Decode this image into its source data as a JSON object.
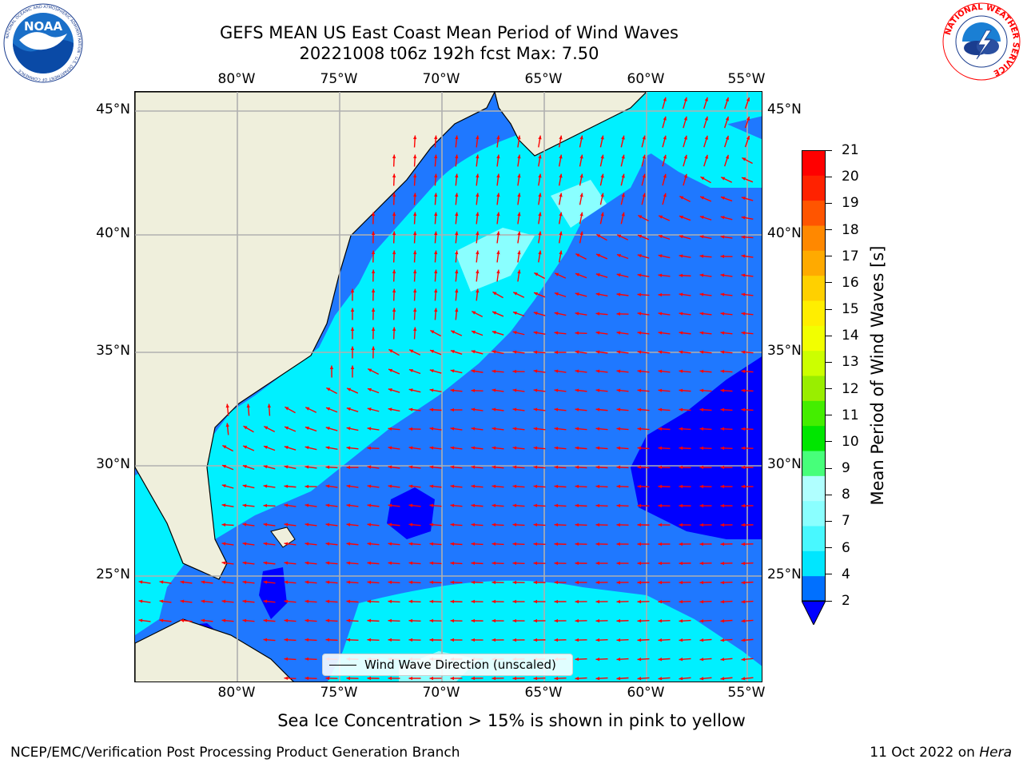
{
  "header": {
    "title_line_1": "GEFS MEAN US East Coast Mean Period of Wind Waves",
    "title_line_2": "20221008 t06z 192h fcst   Max: 7.50"
  },
  "logos": {
    "left": {
      "name": "noaa-logo",
      "text": "NOAA",
      "ring_text": "NATIONAL OCEANIC AND ATMOSPHERIC ADMINISTRATION · U.S. DEPARTMENT OF COMMERCE"
    },
    "right": {
      "name": "nws-logo",
      "ring_text": "NATIONAL WEATHER SERVICE"
    }
  },
  "map": {
    "lon_labels": [
      "80°W",
      "75°W",
      "70°W",
      "65°W",
      "60°W",
      "55°W"
    ],
    "lat_labels": [
      "45°N",
      "40°N",
      "35°N",
      "30°N",
      "25°N"
    ],
    "extent": {
      "lon_min": -85.0,
      "lon_max": -54.2,
      "lat_min": 20.5,
      "lat_max": 45.8
    },
    "grid": true,
    "land_color": "#efefdc",
    "arrow_color": "#ff0000",
    "legend_label": "Wind Wave Direction (unscaled)"
  },
  "colorbar": {
    "label": "Mean Period of Wind Waves [s]",
    "tick_labels": [
      "2",
      "4",
      "6",
      "7",
      "8",
      "9",
      "10",
      "11",
      "12",
      "13",
      "14",
      "15",
      "16",
      "17",
      "18",
      "19",
      "20",
      "21"
    ],
    "colors": [
      "#0070ff",
      "#00e6ff",
      "#48f8ff",
      "#8affff",
      "#b0ffff",
      "#47ff7a",
      "#00e600",
      "#44ee00",
      "#99ee00",
      "#ccff00",
      "#f2ff00",
      "#ffee00",
      "#ffd000",
      "#ffaa00",
      "#ff8800",
      "#ff5500",
      "#ff2200",
      "#ff0000"
    ],
    "under_color": "#0000ff"
  },
  "notes": {
    "sea_ice": "Sea Ice Concentration > 15% is shown in pink to yellow"
  },
  "footer": {
    "left": "NCEP/EMC/Verification Post Processing Product Generation Branch",
    "right_date": "11 Oct 2022 on",
    "right_machine": "Hera"
  }
}
